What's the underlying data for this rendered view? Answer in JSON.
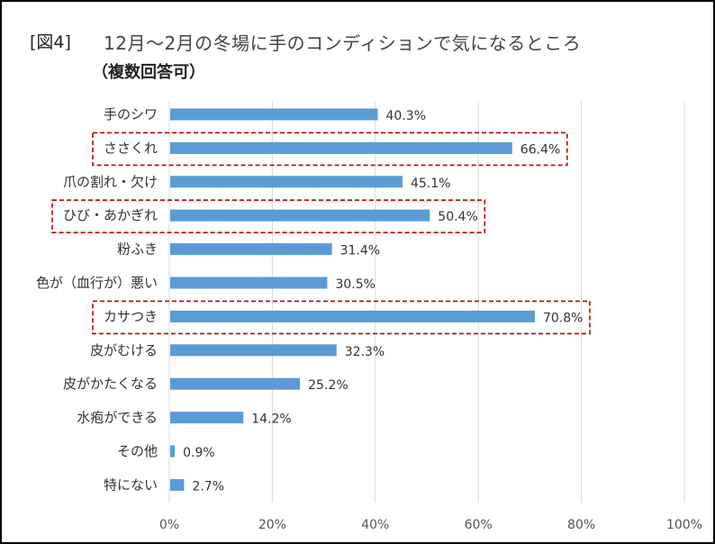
{
  "figure_label": "[図4]",
  "chart_data": {
    "type": "bar",
    "orientation": "horizontal",
    "title": "12月～2月の冬場に手のコンディションで気になるところ",
    "subtitle": "（複数回答可）",
    "categories": [
      "手のシワ",
      "ささくれ",
      "爪の割れ・欠け",
      "ひび・あかぎれ",
      "粉ふき",
      "色が（血行が）悪い",
      "カサつき",
      "皮がむける",
      "皮がかたくなる",
      "水疱ができる",
      "その他",
      "特にない"
    ],
    "values": [
      40.3,
      66.4,
      45.1,
      50.4,
      31.4,
      30.5,
      70.8,
      32.3,
      25.2,
      14.2,
      0.9,
      2.7
    ],
    "data_labels": [
      "40.3%",
      "66.4%",
      "45.1%",
      "50.4%",
      "31.4%",
      "30.5%",
      "70.8%",
      "32.3%",
      "25.2%",
      "14.2%",
      "0.9%",
      "2.7%"
    ],
    "xlim": [
      0,
      100
    ],
    "x_ticks": [
      0,
      20,
      40,
      60,
      80,
      100
    ],
    "x_tick_labels": [
      "0%",
      "20%",
      "40%",
      "60%",
      "80%",
      "100%"
    ],
    "grid": "vertical",
    "legend": "none",
    "highlighted_categories": [
      "ささくれ",
      "ひび・あかぎれ",
      "カサつき"
    ],
    "colors": {
      "bar": "#5B9BD5",
      "highlight_box": "#C00000",
      "grid": "#D9D9D9"
    }
  }
}
